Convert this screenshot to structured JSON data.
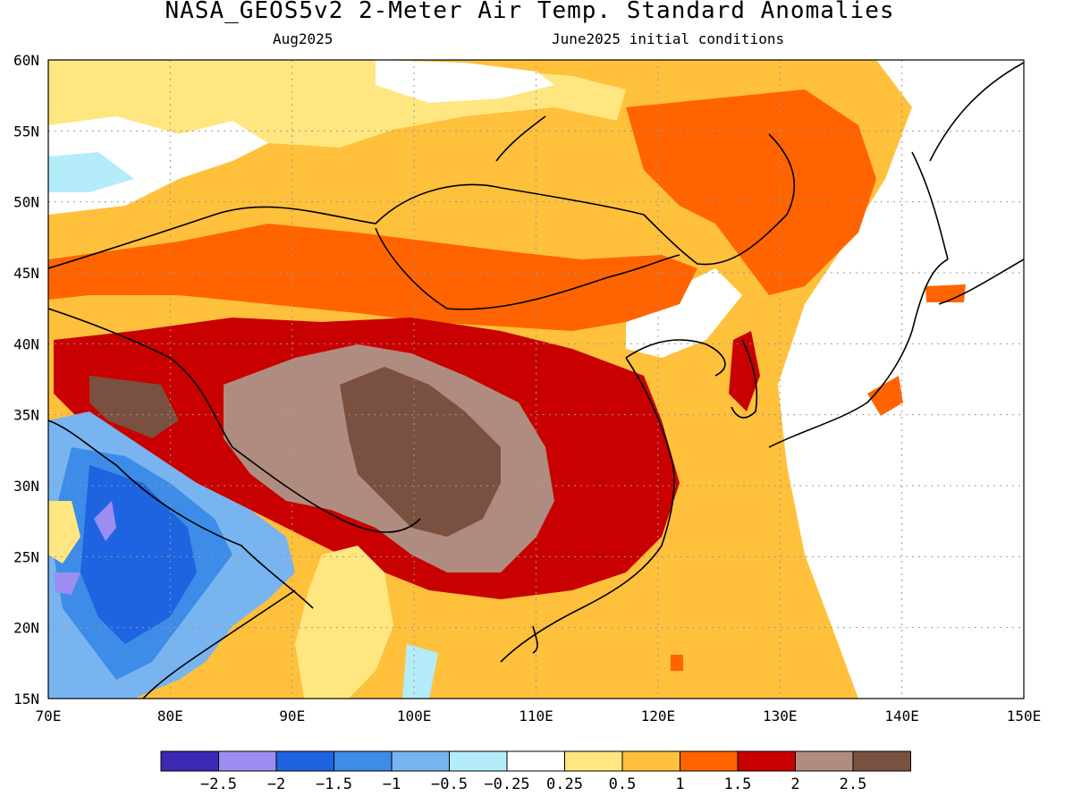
{
  "title": "NASA_GEOS5v2 2-Meter Air Temp. Standard Anomalies",
  "valid_month": "Aug2025",
  "init_conditions": "June2025 initial conditions",
  "map": {
    "lon_range": [
      70,
      150
    ],
    "lat_range": [
      15,
      60
    ],
    "lon_ticks": [
      "70E",
      "80E",
      "90E",
      "100E",
      "110E",
      "120E",
      "130E",
      "140E",
      "150E"
    ],
    "lat_ticks": [
      "60N",
      "55N",
      "50N",
      "45N",
      "40N",
      "35N",
      "30N",
      "25N",
      "20N",
      "15N"
    ],
    "grid": true
  },
  "colorbar": {
    "colors": [
      "#3b29b4",
      "#9b8ef0",
      "#1e64e0",
      "#3c8ce8",
      "#78b4f0",
      "#b4ecfa",
      "#ffffff",
      "#ffe680",
      "#ffc03c",
      "#ff6400",
      "#c80000",
      "#b08c80",
      "#7a5040"
    ],
    "labels": [
      "-2.5",
      "-2",
      "-1.5",
      "-1",
      "-0.5",
      "-0.25",
      "0.25",
      "0.5",
      "1",
      "1.5",
      "2",
      "2.5"
    ]
  }
}
